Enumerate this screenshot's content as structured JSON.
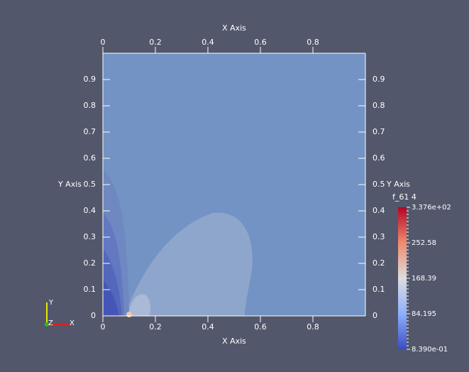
{
  "axes": {
    "x_title": "X Axis",
    "y_title": "Y Axis",
    "xticks": [
      0,
      0.2,
      0.4,
      0.6,
      0.8
    ],
    "yticks": [
      0,
      0.1,
      0.2,
      0.3,
      0.4,
      0.5,
      0.6,
      0.7,
      0.8,
      0.9
    ]
  },
  "colorbar": {
    "title": "f_61 4",
    "labels": [
      "3.376e+02",
      "252.58",
      "168.39",
      "84.195",
      "8.390e-01"
    ]
  },
  "orientation": {
    "x": "X",
    "y": "Y",
    "z": "Z"
  }
}
